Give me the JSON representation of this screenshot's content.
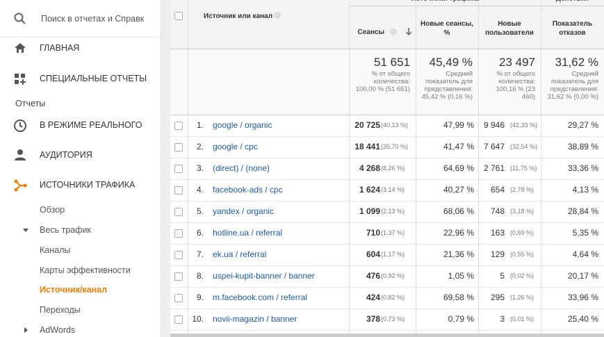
{
  "search": {
    "placeholder": "Поиск в отчетах и Справк"
  },
  "nav": {
    "top_items": [
      "ГЛАВНАЯ",
      "СПЕЦИАЛЬНЫЕ ОТЧЕТЫ"
    ],
    "section": "Отчеты",
    "report_items": [
      "В РЕЖИМЕ РЕАЛЬНОГО",
      "АУДИТОРИЯ",
      "ИСТОЧНИКИ ТРАФИКА"
    ],
    "sub_items": [
      "Обзор",
      "Весь трафик",
      "Каналы",
      "Карты эффективности",
      "Источник/канал",
      "Переходы",
      "AdWords"
    ],
    "active": "Источник/канал"
  },
  "table": {
    "groups": [
      "Источники трафика",
      "Действия"
    ],
    "columns": [
      "Источник или канал",
      "Сеансы",
      "Новые сеансы, %",
      "Новые пользователи",
      "Показатель отказов"
    ],
    "totals": [
      {
        "value": "51 651",
        "note": "% от общего количества: 100,00 % (51 651)"
      },
      {
        "value": "45,49 %",
        "note": "Средний показатель для представления: 45,42 % (0,16 %)"
      },
      {
        "value": "23 497",
        "note": "% от общего количества: 100,16 % (23 460)"
      },
      {
        "value": "31,62 %",
        "note": "Средний показатель для представления: 31,62 % (0,00 %)"
      }
    ],
    "rows": [
      {
        "index": "1.",
        "source": "google / organic",
        "sessions": "20 725",
        "sessions_share": "(40,13 %)",
        "new_sessions": "47,99 %",
        "new_users": "9 946",
        "new_users_share": "(42,33 %)",
        "bounce": "29,27 %"
      },
      {
        "index": "2.",
        "source": "google / cpc",
        "sessions": "18 441",
        "sessions_share": "(35,70 %)",
        "new_sessions": "41,47 %",
        "new_users": "7 647",
        "new_users_share": "(32,54 %)",
        "bounce": "38,89 %"
      },
      {
        "index": "3.",
        "source": "(direct) / (none)",
        "sessions": "4 268",
        "sessions_share": "(8,26 %)",
        "new_sessions": "64,69 %",
        "new_users": "2 761",
        "new_users_share": "(11,75 %)",
        "bounce": "33,36 %"
      },
      {
        "index": "4.",
        "source": "facebook-ads / cpc",
        "sessions": "1 624",
        "sessions_share": "(3,14 %)",
        "new_sessions": "40,27 %",
        "new_users": "654",
        "new_users_share": "(2,78 %)",
        "bounce": "4,13 %"
      },
      {
        "index": "5.",
        "source": "yandex / organic",
        "sessions": "1 099",
        "sessions_share": "(2,13 %)",
        "new_sessions": "68,06 %",
        "new_users": "748",
        "new_users_share": "(3,18 %)",
        "bounce": "28,84 %"
      },
      {
        "index": "6.",
        "source": "hotline.ua / referral",
        "sessions": "710",
        "sessions_share": "(1,37 %)",
        "new_sessions": "22,96 %",
        "new_users": "163",
        "new_users_share": "(0,69 %)",
        "bounce": "5,35 %"
      },
      {
        "index": "7.",
        "source": "ek.ua / referral",
        "sessions": "604",
        "sessions_share": "(1,17 %)",
        "new_sessions": "21,36 %",
        "new_users": "129",
        "new_users_share": "(0,55 %)",
        "bounce": "4,64 %"
      },
      {
        "index": "8.",
        "source": "uspei-kupit-banner / banner",
        "sessions": "476",
        "sessions_share": "(0,92 %)",
        "new_sessions": "1,05 %",
        "new_users": "5",
        "new_users_share": "(0,02 %)",
        "bounce": "20,17 %"
      },
      {
        "index": "9.",
        "source": "m.facebook.com / referral",
        "sessions": "424",
        "sessions_share": "(0,82 %)",
        "new_sessions": "69,58 %",
        "new_users": "295",
        "new_users_share": "(1,26 %)",
        "bounce": "33,96 %"
      },
      {
        "index": "10.",
        "source": "novii-magazin / banner",
        "sessions": "378",
        "sessions_share": "(0,73 %)",
        "new_sessions": "0,79 %",
        "new_users": "3",
        "new_users_share": "(0,01 %)",
        "bounce": "25,40 %"
      }
    ]
  }
}
